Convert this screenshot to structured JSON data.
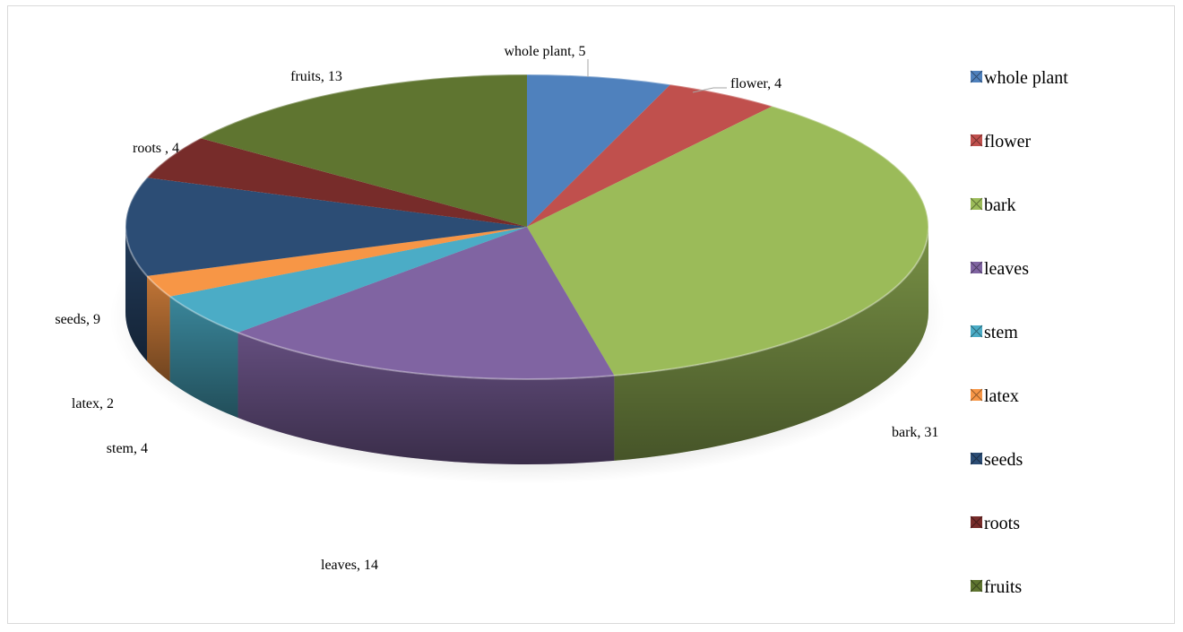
{
  "chart_data": {
    "type": "pie",
    "style": "3d",
    "categories": [
      "whole plant",
      "flower",
      "bark",
      "leaves",
      "stem",
      "latex",
      "seeds",
      "roots ",
      "fruits"
    ],
    "values": [
      5,
      4,
      31,
      14,
      4,
      2,
      9,
      4,
      13
    ],
    "colors": [
      "#4f81bd",
      "#c0504d",
      "#9bbb59",
      "#8064a2",
      "#4bacc6",
      "#f79646",
      "#2c4d75",
      "#772c2a",
      "#5f7530"
    ],
    "data_labels": [
      "whole plant, 5",
      "flower, 4",
      "bark, 31",
      "leaves, 14",
      "stem, 4",
      "latex, 2",
      "seeds, 9",
      "roots , 4",
      "fruits, 13"
    ],
    "legend": {
      "position": "right",
      "entries": [
        "whole plant",
        "flower",
        "bark",
        "leaves",
        "stem",
        "latex",
        "seeds",
        "roots",
        "fruits"
      ]
    }
  }
}
